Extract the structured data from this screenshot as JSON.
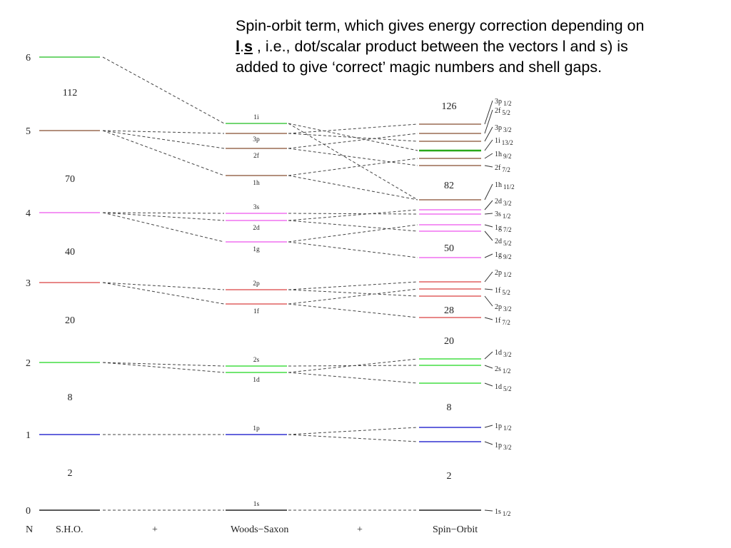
{
  "caption": {
    "line1": "Spin-orbit term, which gives energy correction depending on",
    "l": "l",
    "dot": ".",
    "s": "s",
    "line2_rest": " , i.e., dot/scalar product between the vectors l and s) is",
    "line3": "added to give ‘correct’ magic numbers and shell gaps."
  },
  "colors": {
    "N6": "#44c844",
    "N5": "#9a6b52",
    "N4": "#f070f0",
    "N3": "#e06060",
    "N2": "#44dd44",
    "N1": "#3030d0",
    "N0": "#222222",
    "green_bold": "#2aa81a"
  },
  "footer": {
    "n_label": "N",
    "sho": "S.H.O.",
    "plus1": "+",
    "ws": "Woods−Saxon",
    "plus2": "+",
    "so": "Spin−Orbit"
  },
  "sho": {
    "levels": [
      {
        "n": "6",
        "color": "N6"
      },
      {
        "n": "5",
        "color": "N5"
      },
      {
        "n": "4",
        "color": "N4"
      },
      {
        "n": "3",
        "color": "N3"
      },
      {
        "n": "2",
        "color": "N2"
      },
      {
        "n": "1",
        "color": "N1"
      },
      {
        "n": "0",
        "color": "N0"
      }
    ],
    "magic": [
      "112",
      "70",
      "40",
      "20",
      "8",
      "2"
    ]
  },
  "ws": {
    "levels": [
      {
        "label": "1i",
        "color": "N6"
      },
      {
        "label": "3p",
        "color": "N5"
      },
      {
        "label": "2f",
        "color": "N5"
      },
      {
        "label": "1h",
        "color": "N5"
      },
      {
        "label": "3s",
        "color": "N4"
      },
      {
        "label": "2d",
        "color": "N4"
      },
      {
        "label": "1g",
        "color": "N4"
      },
      {
        "label": "2p",
        "color": "N3"
      },
      {
        "label": "1f",
        "color": "N3"
      },
      {
        "label": "2s",
        "color": "N2"
      },
      {
        "label": "1d",
        "color": "N2"
      },
      {
        "label": "1p",
        "color": "N1"
      },
      {
        "label": "1s",
        "color": "N0"
      }
    ]
  },
  "so": {
    "levels": [
      {
        "main": "3p",
        "sub": "1/2",
        "color": "N5"
      },
      {
        "main": "2f",
        "sub": "5/2",
        "color": "N5"
      },
      {
        "main": "3p",
        "sub": "3/2",
        "color": "N5"
      },
      {
        "main": "1i",
        "sub": "13/2",
        "color": "green_bold"
      },
      {
        "main": "1h",
        "sub": "9/2",
        "color": "N5"
      },
      {
        "main": "2f",
        "sub": "7/2",
        "color": "N5"
      },
      {
        "main": "1h",
        "sub": "11/2",
        "color": "N5"
      },
      {
        "main": "2d",
        "sub": "3/2",
        "color": "N4"
      },
      {
        "main": "3s",
        "sub": "1/2",
        "color": "N4"
      },
      {
        "main": "1g",
        "sub": "7/2",
        "color": "N4"
      },
      {
        "main": "2d",
        "sub": "5/2",
        "color": "N4"
      },
      {
        "main": "1g",
        "sub": "9/2",
        "color": "N4"
      },
      {
        "main": "2p",
        "sub": "1/2",
        "color": "N3"
      },
      {
        "main": "1f",
        "sub": "5/2",
        "color": "N3"
      },
      {
        "main": "2p",
        "sub": "3/2",
        "color": "N3"
      },
      {
        "main": "1f",
        "sub": "7/2",
        "color": "N3"
      },
      {
        "main": "1d",
        "sub": "3/2",
        "color": "N2"
      },
      {
        "main": "2s",
        "sub": "1/2",
        "color": "N2"
      },
      {
        "main": "1d",
        "sub": "5/2",
        "color": "N2"
      },
      {
        "main": "1p",
        "sub": "1/2",
        "color": "N1"
      },
      {
        "main": "1p",
        "sub": "3/2",
        "color": "N1"
      },
      {
        "main": "1s",
        "sub": "1/2",
        "color": "N0"
      }
    ],
    "magic": [
      "126",
      "82",
      "50",
      "28",
      "20",
      "8",
      "2"
    ]
  }
}
